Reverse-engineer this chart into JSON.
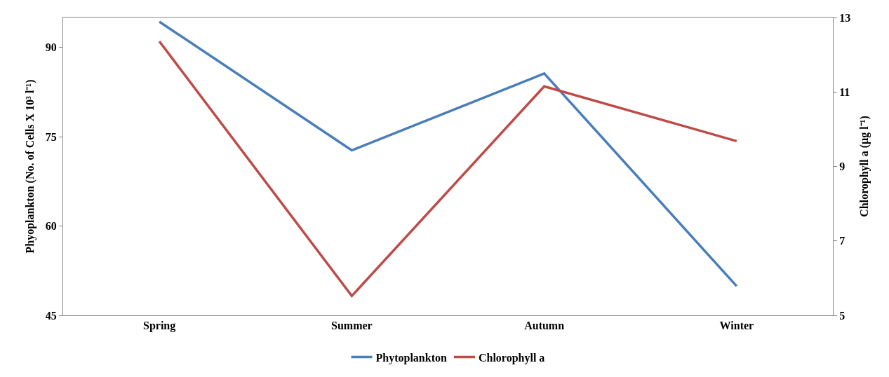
{
  "chart_data": {
    "type": "line",
    "categories": [
      "Spring",
      "Summer",
      "Autumn",
      "Winter"
    ],
    "ylabel": "Phyoplankton (No. of Cells X 10³ l⁻¹)",
    "y2label": "Chlorophyll a (µg l⁻¹)",
    "ylim": [
      45,
      95
    ],
    "yticks": [
      45,
      60,
      75,
      90
    ],
    "y2lim": [
      5,
      13
    ],
    "y2ticks": [
      5,
      7,
      9,
      11,
      13
    ],
    "series": [
      {
        "name": "Phytoplankton",
        "color": "#4a7ebb",
        "values": [
          94.3,
          72.7,
          85.6,
          49.9
        ]
      },
      {
        "name": "Chlorophyll a",
        "color": "#be4b48",
        "values": [
          12.36,
          5.52,
          11.15,
          9.68
        ],
        "axis": "y2"
      }
    ],
    "grid": false,
    "legend": "bottom",
    "marker": "none",
    "line_style": "solid"
  }
}
